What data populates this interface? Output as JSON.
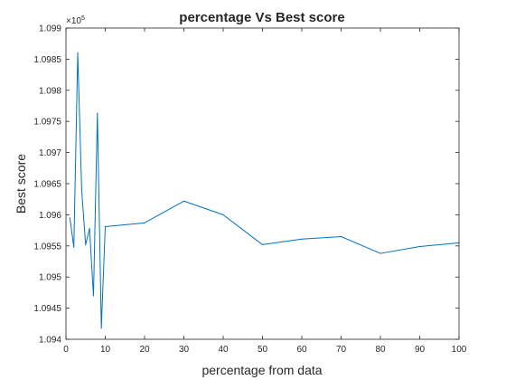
{
  "chart_data": {
    "type": "line",
    "title": "percentage Vs Best score",
    "xlabel": "percentage from data",
    "ylabel": "Best score",
    "y_multiplier": {
      "base": "×10",
      "exponent": "5"
    },
    "xlim": [
      0,
      100
    ],
    "ylim": [
      1.094,
      1.099
    ],
    "x_ticks": [
      0,
      10,
      20,
      30,
      40,
      50,
      60,
      70,
      80,
      90,
      100
    ],
    "x_tick_labels": [
      "0",
      "10",
      "20",
      "30",
      "40",
      "50",
      "60",
      "70",
      "80",
      "90",
      "100"
    ],
    "y_ticks": [
      1.094,
      1.0945,
      1.095,
      1.0955,
      1.096,
      1.0965,
      1.097,
      1.0975,
      1.098,
      1.0985,
      1.099
    ],
    "y_tick_labels": [
      "1.094",
      "1.0945",
      "1.095",
      "1.0955",
      "1.096",
      "1.0965",
      "1.097",
      "1.0975",
      "1.098",
      "1.0985",
      "1.099"
    ],
    "grid": false,
    "series": [
      {
        "color": "#0072bd",
        "x": [
          1,
          2,
          3,
          4,
          5,
          6,
          7,
          8,
          9,
          10,
          20,
          30,
          40,
          50,
          60,
          70,
          80,
          90,
          100
        ],
        "y": [
          1.09595,
          1.09548,
          1.0986,
          1.0964,
          1.09552,
          1.09578,
          1.0947,
          1.09763,
          1.09418,
          1.09581,
          1.09587,
          1.09622,
          1.096,
          1.09552,
          1.09561,
          1.09565,
          1.09538,
          1.09549,
          1.09555
        ]
      }
    ]
  }
}
